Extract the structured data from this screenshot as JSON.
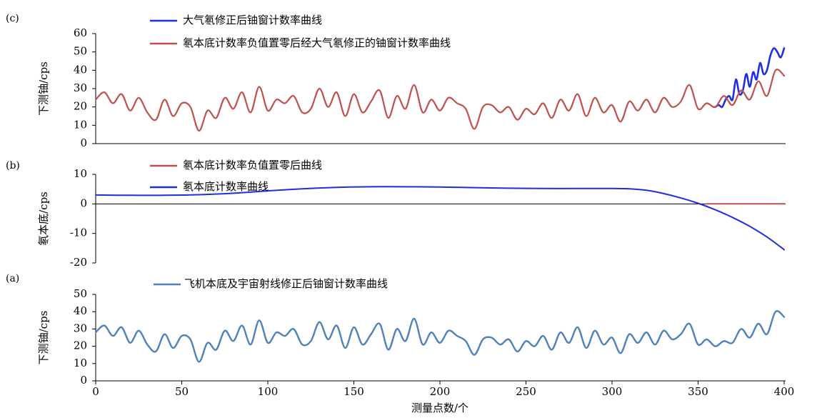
{
  "chart_data": [
    {
      "panel_label": "(c)",
      "type": "line",
      "ylabel": "下测铀/cps",
      "xlim": [
        0,
        400
      ],
      "ylim": [
        0,
        60
      ],
      "yticks": [
        0,
        10,
        20,
        30,
        40,
        50,
        60
      ],
      "legend_placement": "top-left",
      "series": [
        {
          "name": "大气氡修正后铀窗计数率曲线",
          "color": "#1f2ee0",
          "x": [
            360,
            362,
            364,
            366,
            368,
            370,
            372,
            374,
            376,
            378,
            380,
            382,
            384,
            386,
            388,
            390,
            392,
            394,
            396,
            398,
            400
          ],
          "y": [
            20,
            21,
            20,
            24,
            26,
            24,
            35,
            27,
            29,
            38,
            31,
            39,
            35,
            44,
            38,
            40,
            48,
            52,
            50,
            47,
            52
          ]
        },
        {
          "name": "氡本底计数率负值置零后经大气氡修正的铀窗计数率曲线",
          "color": "#c0504d",
          "x": [
            0,
            5,
            10,
            15,
            20,
            25,
            30,
            35,
            40,
            45,
            50,
            55,
            60,
            65,
            70,
            75,
            80,
            85,
            90,
            95,
            100,
            105,
            110,
            115,
            120,
            125,
            130,
            135,
            140,
            145,
            150,
            155,
            160,
            165,
            170,
            175,
            180,
            185,
            190,
            195,
            200,
            205,
            210,
            215,
            220,
            225,
            230,
            235,
            240,
            245,
            250,
            255,
            260,
            265,
            270,
            275,
            280,
            285,
            290,
            295,
            300,
            305,
            310,
            315,
            320,
            325,
            330,
            335,
            340,
            345,
            350,
            355,
            360,
            365,
            370,
            375,
            380,
            385,
            390,
            395,
            400
          ],
          "y": [
            24,
            28,
            22,
            27,
            18,
            25,
            17,
            13,
            24,
            15,
            22,
            20,
            7,
            18,
            14,
            25,
            19,
            28,
            17,
            31,
            18,
            24,
            22,
            26,
            17,
            19,
            30,
            20,
            28,
            15,
            27,
            17,
            23,
            29,
            14,
            26,
            19,
            32,
            17,
            24,
            18,
            25,
            22,
            19,
            8,
            20,
            21,
            17,
            20,
            13,
            19,
            16,
            22,
            14,
            24,
            18,
            27,
            15,
            25,
            17,
            21,
            12,
            23,
            18,
            24,
            17,
            25,
            20,
            23,
            32,
            19,
            22,
            20,
            26,
            21,
            29,
            24,
            34,
            26,
            40,
            37
          ]
        }
      ]
    },
    {
      "panel_label": "(b)",
      "type": "line",
      "ylabel": "氡本底/cps",
      "xlim": [
        0,
        400
      ],
      "ylim": [
        -20,
        10
      ],
      "yticks": [
        -20,
        -10,
        0,
        10
      ],
      "legend_placement": "top-left",
      "series": [
        {
          "name": "氡本底计数率负值置零后曲线",
          "color": "#c0504d",
          "x": [
            355,
            360,
            370,
            380,
            390,
            400
          ],
          "y": [
            0,
            0,
            0,
            0,
            0,
            0
          ]
        },
        {
          "name": "氡本底计数率曲线",
          "color": "#1f2ee0",
          "x": [
            0,
            20,
            40,
            60,
            80,
            100,
            120,
            140,
            160,
            180,
            200,
            220,
            240,
            260,
            280,
            300,
            310,
            320,
            330,
            340,
            350,
            360,
            370,
            380,
            390,
            400
          ],
          "y": [
            3,
            2.9,
            2.9,
            3.1,
            3.6,
            4.4,
            5.1,
            5.6,
            5.8,
            5.8,
            5.7,
            5.5,
            5.3,
            5.2,
            5.2,
            5.2,
            5.1,
            4.6,
            3.5,
            2.0,
            0.2,
            -2.0,
            -4.6,
            -7.6,
            -11.2,
            -15.5
          ]
        }
      ]
    },
    {
      "panel_label": "(a)",
      "type": "line",
      "ylabel": "下测铀/cps",
      "xlabel": "测量点数/个",
      "xlim": [
        0,
        400
      ],
      "ylim": [
        0,
        50
      ],
      "xticks": [
        0,
        50,
        100,
        150,
        200,
        250,
        300,
        350,
        400
      ],
      "yticks": [
        0,
        10,
        20,
        30,
        40,
        50
      ],
      "legend_placement": "top-left",
      "series": [
        {
          "name": "飞机本底及宇宙射线修正后铀窗计数率曲线",
          "color": "#4f81bd",
          "x": [
            0,
            5,
            10,
            15,
            20,
            25,
            30,
            35,
            40,
            45,
            50,
            55,
            60,
            65,
            70,
            75,
            80,
            85,
            90,
            95,
            100,
            105,
            110,
            115,
            120,
            125,
            130,
            135,
            140,
            145,
            150,
            155,
            160,
            165,
            170,
            175,
            180,
            185,
            190,
            195,
            200,
            205,
            210,
            215,
            220,
            225,
            230,
            235,
            240,
            245,
            250,
            255,
            260,
            265,
            270,
            275,
            280,
            285,
            290,
            295,
            300,
            305,
            310,
            315,
            320,
            325,
            330,
            335,
            340,
            345,
            350,
            355,
            360,
            365,
            370,
            375,
            380,
            385,
            390,
            395,
            400
          ],
          "y": [
            28,
            32,
            26,
            31,
            22,
            29,
            21,
            17,
            27,
            19,
            26,
            24,
            11,
            22,
            18,
            29,
            23,
            32,
            21,
            35,
            22,
            28,
            26,
            30,
            21,
            23,
            34,
            24,
            32,
            19,
            31,
            21,
            27,
            33,
            18,
            30,
            23,
            36,
            21,
            28,
            22,
            29,
            26,
            23,
            15,
            24,
            25,
            21,
            24,
            17,
            23,
            20,
            26,
            18,
            28,
            22,
            31,
            19,
            29,
            21,
            25,
            16,
            27,
            22,
            28,
            21,
            29,
            24,
            27,
            33,
            21,
            24,
            20,
            23,
            22,
            30,
            25,
            33,
            27,
            40,
            37
          ]
        }
      ]
    }
  ]
}
